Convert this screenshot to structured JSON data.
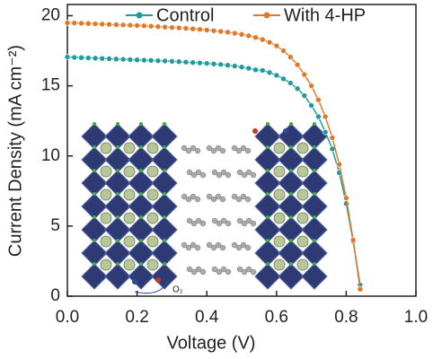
{
  "chart_data": {
    "type": "line",
    "xlabel": "Voltage (V)",
    "ylabel": "Current Density (mA cm⁻²)",
    "annotation": "O₂",
    "xlim": [
      0,
      1.0
    ],
    "ylim": [
      0,
      20.8
    ],
    "xticks": [
      {
        "value": 0,
        "label": "0.0"
      },
      0.2,
      0.4,
      0.6,
      0.8,
      {
        "value": 1,
        "label": "1.0"
      }
    ],
    "yticks": [
      0,
      5,
      10,
      15,
      20
    ],
    "legend": "top",
    "x": [
      0,
      0.02,
      0.04,
      0.06,
      0.08,
      0.1,
      0.12,
      0.14,
      0.16,
      0.18,
      0.2,
      0.22,
      0.24,
      0.26,
      0.28,
      0.3,
      0.32,
      0.34,
      0.36,
      0.38,
      0.4,
      0.42,
      0.44,
      0.46,
      0.48,
      0.5,
      0.52,
      0.54,
      0.56,
      0.58,
      0.6,
      0.62,
      0.64,
      0.66,
      0.68,
      0.7,
      0.72,
      0.74,
      0.76,
      0.78,
      0.8,
      0.82,
      0.84
    ],
    "series": [
      {
        "name": "Control",
        "color": "#1f9b9b",
        "values": [
          17.05,
          17.03,
          17.01,
          16.99,
          16.97,
          16.95,
          16.93,
          16.91,
          16.89,
          16.87,
          16.85,
          16.83,
          16.81,
          16.79,
          16.77,
          16.75,
          16.72,
          16.69,
          16.66,
          16.63,
          16.6,
          16.56,
          16.52,
          16.47,
          16.41,
          16.34,
          16.25,
          16.14,
          16.1,
          15.95,
          15.75,
          15.5,
          15.2,
          14.8,
          14.3,
          13.6,
          12.8,
          11.7,
          10.5,
          8.8,
          6.6,
          3.9,
          0.8
        ]
      },
      {
        "name": "With 4-HP",
        "color": "#e0782a",
        "values": [
          19.5,
          19.48,
          19.46,
          19.44,
          19.42,
          19.4,
          19.38,
          19.36,
          19.34,
          19.32,
          19.3,
          19.28,
          19.25,
          19.22,
          19.19,
          19.16,
          19.13,
          19.1,
          19.06,
          19.02,
          18.98,
          18.93,
          18.88,
          18.82,
          18.75,
          18.67,
          18.57,
          18.45,
          18.3,
          18.1,
          17.85,
          17.5,
          17.05,
          16.5,
          15.8,
          15.0,
          14.0,
          12.8,
          11.3,
          9.4,
          7.0,
          4.0,
          0.5
        ]
      }
    ]
  }
}
